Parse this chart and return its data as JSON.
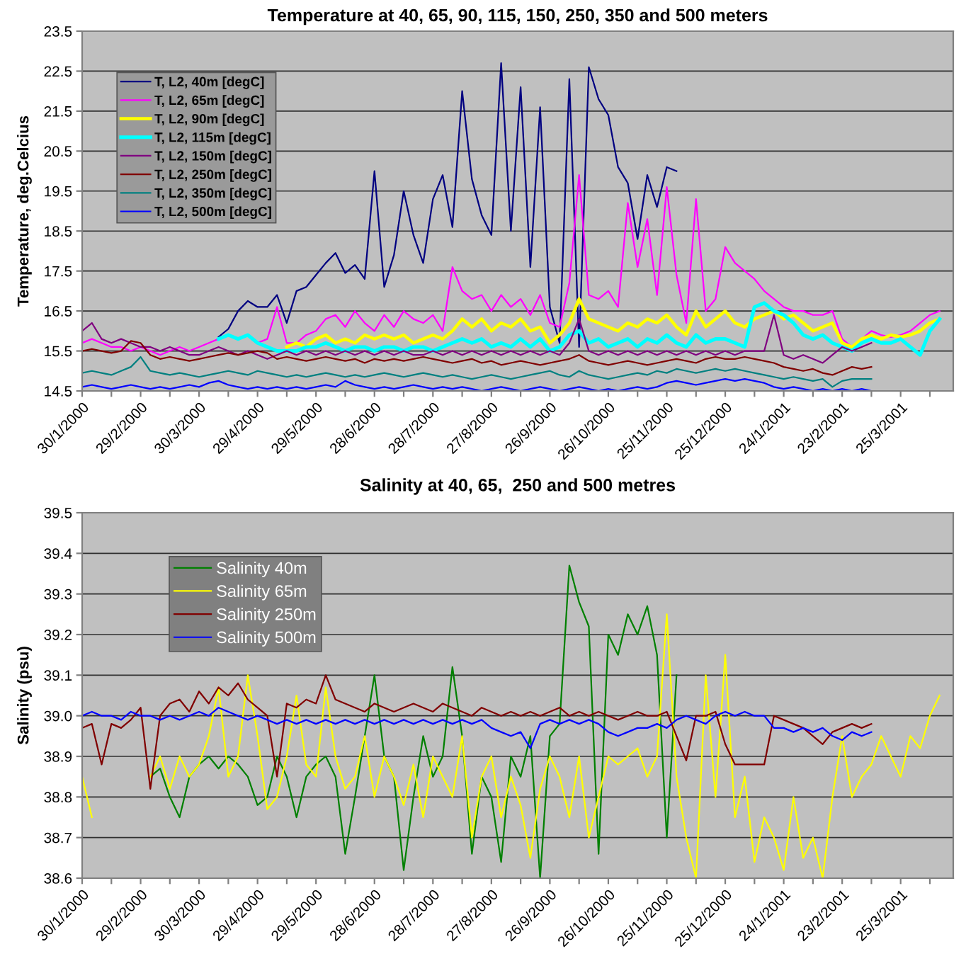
{
  "chart_data": [
    {
      "type": "line",
      "title": "Temperature at 40, 65, 90, 115, 150, 250, 350 and 500 meters",
      "ylabel": "Temperature, deg.Celcius",
      "x": [
        "2000-01-30",
        "2000-02-04",
        "2000-02-09",
        "2000-02-14",
        "2000-02-19",
        "2000-02-24",
        "2000-02-29",
        "2000-03-05",
        "2000-03-10",
        "2000-03-15",
        "2000-03-20",
        "2000-03-25",
        "2000-03-30",
        "2000-04-04",
        "2000-04-09",
        "2000-04-14",
        "2000-04-19",
        "2000-04-24",
        "2000-04-29",
        "2000-05-04",
        "2000-05-09",
        "2000-05-14",
        "2000-05-19",
        "2000-05-24",
        "2000-05-29",
        "2000-06-03",
        "2000-06-08",
        "2000-06-13",
        "2000-06-18",
        "2000-06-23",
        "2000-06-28",
        "2000-07-03",
        "2000-07-08",
        "2000-07-13",
        "2000-07-18",
        "2000-07-23",
        "2000-07-28",
        "2000-08-02",
        "2000-08-07",
        "2000-08-12",
        "2000-08-17",
        "2000-08-22",
        "2000-08-27",
        "2000-09-01",
        "2000-09-06",
        "2000-09-11",
        "2000-09-16",
        "2000-09-21",
        "2000-09-26",
        "2000-10-01",
        "2000-10-06",
        "2000-10-11",
        "2000-10-16",
        "2000-10-21",
        "2000-10-26",
        "2000-10-31",
        "2000-11-05",
        "2000-11-10",
        "2000-11-15",
        "2000-11-20",
        "2000-11-25",
        "2000-11-30",
        "2000-12-05",
        "2000-12-10",
        "2000-12-15",
        "2000-12-20",
        "2000-12-25",
        "2000-12-30",
        "2001-01-04",
        "2001-01-09",
        "2001-01-14",
        "2001-01-19",
        "2001-01-24",
        "2001-01-29",
        "2001-02-03",
        "2001-02-08",
        "2001-02-13",
        "2001-02-18",
        "2001-02-23",
        "2001-02-28",
        "2001-03-05",
        "2001-03-10",
        "2001-03-15",
        "2001-03-20",
        "2001-03-25",
        "2001-03-30",
        "2001-04-04",
        "2001-04-09",
        "2001-04-14"
      ],
      "series": [
        {
          "name": "T, L2, 40m [degC]",
          "color": "#000080",
          "values": [
            null,
            null,
            null,
            null,
            null,
            null,
            null,
            null,
            null,
            null,
            null,
            null,
            null,
            null,
            15.85,
            16.05,
            16.5,
            16.75,
            16.6,
            16.6,
            16.9,
            16.2,
            17.0,
            17.1,
            17.4,
            17.7,
            17.95,
            17.45,
            17.65,
            17.3,
            20.0,
            17.1,
            17.9,
            19.5,
            18.4,
            17.7,
            19.3,
            19.9,
            18.6,
            22.0,
            19.8,
            18.9,
            18.4,
            22.7,
            18.5,
            22.1,
            17.6,
            21.6,
            16.6,
            15.7,
            22.3,
            15.6,
            22.6,
            21.8,
            21.4,
            20.1,
            19.7,
            18.3,
            19.9,
            19.1,
            20.1,
            20.0,
            null,
            null,
            null,
            null,
            null,
            null,
            null,
            null,
            null,
            null,
            null,
            null,
            null,
            null,
            null,
            null,
            null,
            null,
            null,
            null,
            null,
            null,
            null,
            null,
            null,
            null,
            null
          ]
        },
        {
          "name": "T, L2, 65m [degC]",
          "color": "#ff00ff",
          "values": [
            15.7,
            15.8,
            15.7,
            15.6,
            15.6,
            15.5,
            15.6,
            15.5,
            15.4,
            15.5,
            15.6,
            15.5,
            15.6,
            15.7,
            15.8,
            15.9,
            15.8,
            15.9,
            15.7,
            15.8,
            16.6,
            15.7,
            15.7,
            15.9,
            16.0,
            16.3,
            16.4,
            16.1,
            16.5,
            16.2,
            16.0,
            16.4,
            16.1,
            16.5,
            16.3,
            16.2,
            16.4,
            16.0,
            17.6,
            17.0,
            16.8,
            16.9,
            16.5,
            16.9,
            16.6,
            16.8,
            16.4,
            16.9,
            16.2,
            16.1,
            17.2,
            19.9,
            16.9,
            16.8,
            17.0,
            16.6,
            19.2,
            17.6,
            18.8,
            16.9,
            19.6,
            17.4,
            16.2,
            19.3,
            16.5,
            16.8,
            18.1,
            17.7,
            17.5,
            17.3,
            17.0,
            16.8,
            16.6,
            16.5,
            16.5,
            16.4,
            16.4,
            16.5,
            15.8,
            15.6,
            15.8,
            16.0,
            15.9,
            15.85,
            15.9,
            16.0,
            16.2,
            16.4,
            16.5
          ]
        },
        {
          "name": "T, L2, 90m [degC]",
          "color": "#ffff00",
          "values": [
            null,
            null,
            null,
            null,
            null,
            null,
            null,
            null,
            null,
            null,
            null,
            null,
            null,
            null,
            null,
            null,
            null,
            null,
            null,
            null,
            null,
            15.6,
            15.7,
            15.6,
            15.8,
            15.9,
            15.7,
            15.8,
            15.7,
            15.9,
            15.8,
            15.9,
            15.8,
            15.9,
            15.7,
            15.8,
            15.9,
            15.8,
            16.0,
            16.3,
            16.1,
            16.3,
            16.0,
            16.2,
            16.1,
            16.3,
            16.0,
            16.1,
            15.7,
            15.9,
            16.2,
            16.8,
            16.3,
            16.2,
            16.1,
            16.0,
            16.2,
            16.1,
            16.3,
            16.2,
            16.4,
            16.1,
            15.9,
            16.5,
            16.1,
            16.3,
            16.5,
            16.2,
            16.1,
            16.3,
            16.4,
            16.5,
            16.3,
            16.4,
            16.2,
            16.0,
            16.1,
            16.2,
            15.7,
            15.6,
            15.8,
            15.9,
            15.8,
            15.9,
            15.85,
            15.9,
            16.0,
            16.2,
            16.3
          ]
        },
        {
          "name": "T, L2, 115m [degC]",
          "color": "#00ffff",
          "values": [
            null,
            null,
            null,
            null,
            null,
            null,
            null,
            null,
            null,
            null,
            null,
            null,
            null,
            null,
            15.8,
            15.9,
            15.8,
            15.9,
            15.7,
            15.6,
            15.5,
            15.5,
            15.5,
            15.6,
            15.6,
            15.7,
            15.6,
            15.5,
            15.6,
            15.6,
            15.5,
            15.6,
            15.6,
            15.5,
            15.6,
            15.6,
            15.5,
            15.6,
            15.7,
            15.8,
            15.7,
            15.8,
            15.6,
            15.7,
            15.6,
            15.8,
            15.6,
            15.8,
            15.5,
            15.6,
            15.9,
            16.0,
            15.7,
            15.8,
            15.6,
            15.7,
            15.8,
            15.6,
            15.8,
            15.7,
            15.9,
            15.7,
            15.6,
            15.9,
            15.7,
            15.8,
            15.8,
            15.7,
            15.6,
            16.6,
            16.7,
            16.5,
            16.4,
            16.2,
            15.9,
            15.8,
            15.9,
            15.7,
            15.6,
            15.5,
            15.7,
            15.8,
            15.7,
            15.7,
            15.8,
            15.6,
            15.4,
            16.0,
            16.3
          ]
        },
        {
          "name": "T, L2, 150m [degC]",
          "color": "#800080",
          "values": [
            16.0,
            16.2,
            15.8,
            15.7,
            15.8,
            15.7,
            15.6,
            15.6,
            15.5,
            15.6,
            15.5,
            15.4,
            15.4,
            15.5,
            15.6,
            15.5,
            15.4,
            15.5,
            15.4,
            15.3,
            15.4,
            15.5,
            15.4,
            15.5,
            15.4,
            15.5,
            15.4,
            15.5,
            15.4,
            15.5,
            15.4,
            15.5,
            15.4,
            15.5,
            15.4,
            15.4,
            15.5,
            15.4,
            15.5,
            15.4,
            15.5,
            15.4,
            15.5,
            15.4,
            15.5,
            15.4,
            15.5,
            15.4,
            15.5,
            15.4,
            15.7,
            16.3,
            15.5,
            15.4,
            15.5,
            15.4,
            15.5,
            15.4,
            15.5,
            15.4,
            15.5,
            15.4,
            15.5,
            15.4,
            15.5,
            15.4,
            15.5,
            15.4,
            15.5,
            15.5,
            15.5,
            16.4,
            15.4,
            15.3,
            15.4,
            15.3,
            15.2,
            15.4,
            15.6,
            15.5,
            15.6,
            15.7,
            null,
            null,
            null,
            null,
            null,
            null,
            null
          ]
        },
        {
          "name": "T, L2, 250m [degC]",
          "color": "#800000",
          "values": [
            15.5,
            15.55,
            15.5,
            15.45,
            15.5,
            15.75,
            15.7,
            15.4,
            15.3,
            15.35,
            15.3,
            15.25,
            15.3,
            15.35,
            15.4,
            15.45,
            15.4,
            15.45,
            15.5,
            15.45,
            15.3,
            15.35,
            15.3,
            15.25,
            15.3,
            15.35,
            15.3,
            15.25,
            15.3,
            15.2,
            15.3,
            15.25,
            15.3,
            15.25,
            15.3,
            15.35,
            15.3,
            15.25,
            15.2,
            15.25,
            15.3,
            15.2,
            15.25,
            15.15,
            15.2,
            15.25,
            15.2,
            15.15,
            15.2,
            15.25,
            15.3,
            15.4,
            15.25,
            15.2,
            15.15,
            15.2,
            15.25,
            15.2,
            15.15,
            15.2,
            15.25,
            15.3,
            15.25,
            15.2,
            15.3,
            15.35,
            15.3,
            15.3,
            15.35,
            15.3,
            15.25,
            15.2,
            15.1,
            15.05,
            15.0,
            15.05,
            14.95,
            14.9,
            15.0,
            15.1,
            15.05,
            15.1,
            null,
            null,
            null,
            null,
            null,
            null,
            null
          ]
        },
        {
          "name": "T, L2, 350m [degC]",
          "color": "#008080",
          "values": [
            14.95,
            15.0,
            14.95,
            14.9,
            15.0,
            15.1,
            15.35,
            15.0,
            14.95,
            14.9,
            14.95,
            14.9,
            14.85,
            14.9,
            14.95,
            15.0,
            14.95,
            14.9,
            15.0,
            14.95,
            14.9,
            14.85,
            14.9,
            14.85,
            14.9,
            14.95,
            14.9,
            14.85,
            14.9,
            14.85,
            14.9,
            14.95,
            14.9,
            14.85,
            14.9,
            14.95,
            14.9,
            14.85,
            14.9,
            14.85,
            14.8,
            14.85,
            14.9,
            14.85,
            14.8,
            14.85,
            14.9,
            14.95,
            15.0,
            14.9,
            14.85,
            15.0,
            14.9,
            14.85,
            14.8,
            14.85,
            14.9,
            14.95,
            14.9,
            15.0,
            14.95,
            15.05,
            15.0,
            14.95,
            15.0,
            15.05,
            15.0,
            15.05,
            15.0,
            14.95,
            14.9,
            14.85,
            14.8,
            14.85,
            14.8,
            14.75,
            14.8,
            14.6,
            14.75,
            14.8,
            14.8,
            14.8,
            null,
            null,
            null,
            null,
            null,
            null,
            null
          ]
        },
        {
          "name": "T, L2, 500m [degC]",
          "color": "#0000ff",
          "values": [
            14.6,
            14.65,
            14.6,
            14.55,
            14.6,
            14.65,
            14.6,
            14.55,
            14.6,
            14.55,
            14.6,
            14.65,
            14.6,
            14.7,
            14.75,
            14.65,
            14.6,
            14.55,
            14.6,
            14.55,
            14.6,
            14.55,
            14.6,
            14.55,
            14.6,
            14.65,
            14.6,
            14.75,
            14.65,
            14.6,
            14.55,
            14.6,
            14.55,
            14.6,
            14.65,
            14.6,
            14.55,
            14.6,
            14.55,
            14.6,
            14.55,
            14.5,
            14.55,
            14.6,
            14.55,
            14.5,
            14.55,
            14.6,
            14.55,
            14.5,
            14.55,
            14.6,
            14.55,
            14.5,
            14.55,
            14.5,
            14.55,
            14.6,
            14.55,
            14.6,
            14.7,
            14.75,
            14.7,
            14.65,
            14.7,
            14.75,
            14.8,
            14.75,
            14.8,
            14.75,
            14.7,
            14.6,
            14.55,
            14.6,
            14.55,
            14.5,
            14.55,
            14.5,
            14.55,
            14.5,
            14.55,
            14.5,
            null,
            null,
            null,
            null,
            null,
            null,
            null
          ]
        }
      ],
      "xlim": [
        "2000-01-30",
        "2001-04-21"
      ],
      "xticks": [
        {
          "value": "2000-01-30",
          "label": "30/1/2000"
        },
        {
          "value": "2000-02-14",
          "label": null
        },
        {
          "value": "2000-02-29",
          "label": "29/2/2000"
        },
        {
          "value": "2000-03-15",
          "label": null
        },
        {
          "value": "2000-03-30",
          "label": "30/3/2000"
        },
        {
          "value": "2000-04-14",
          "label": null
        },
        {
          "value": "2000-04-29",
          "label": "29/4/2000"
        },
        {
          "value": "2000-05-14",
          "label": null
        },
        {
          "value": "2000-05-29",
          "label": "29/5/2000"
        },
        {
          "value": "2000-06-13",
          "label": null
        },
        {
          "value": "2000-06-28",
          "label": "28/6/2000"
        },
        {
          "value": "2000-07-13",
          "label": null
        },
        {
          "value": "2000-07-28",
          "label": "28/7/2000"
        },
        {
          "value": "2000-08-12",
          "label": null
        },
        {
          "value": "2000-08-27",
          "label": "27/8/2000"
        },
        {
          "value": "2000-09-11",
          "label": null
        },
        {
          "value": "2000-09-26",
          "label": "26/9/2000"
        },
        {
          "value": "2000-10-11",
          "label": null
        },
        {
          "value": "2000-10-26",
          "label": "26/10/2000"
        },
        {
          "value": "2000-11-10",
          "label": null
        },
        {
          "value": "2000-11-25",
          "label": "25/11/2000"
        },
        {
          "value": "2000-12-10",
          "label": null
        },
        {
          "value": "2000-12-25",
          "label": "25/12/2000"
        },
        {
          "value": "2001-01-09",
          "label": null
        },
        {
          "value": "2001-01-24",
          "label": "24/1/2001"
        },
        {
          "value": "2001-02-08",
          "label": null
        },
        {
          "value": "2001-02-23",
          "label": "23/2/2001"
        },
        {
          "value": "2001-03-10",
          "label": null
        },
        {
          "value": "2001-03-25",
          "label": "25/3/2001"
        },
        {
          "value": "2001-04-09",
          "label": null
        }
      ],
      "ylim": [
        14.5,
        23.5
      ],
      "yticks": [
        14.5,
        15.5,
        16.5,
        17.5,
        18.5,
        19.5,
        20.5,
        21.5,
        22.5,
        23.5
      ],
      "grid": "y",
      "legend": "top left"
    },
    {
      "type": "line",
      "title": "Salinity at 40, 65,  250 and 500 metres",
      "ylabel": "Salinity (psu)",
      "x": [
        "2000-01-30",
        "2000-02-04",
        "2000-02-09",
        "2000-02-14",
        "2000-02-19",
        "2000-02-24",
        "2000-02-29",
        "2000-03-05",
        "2000-03-10",
        "2000-03-15",
        "2000-03-20",
        "2000-03-25",
        "2000-03-30",
        "2000-04-04",
        "2000-04-09",
        "2000-04-14",
        "2000-04-19",
        "2000-04-24",
        "2000-04-29",
        "2000-05-04",
        "2000-05-09",
        "2000-05-14",
        "2000-05-19",
        "2000-05-24",
        "2000-05-29",
        "2000-06-03",
        "2000-06-08",
        "2000-06-13",
        "2000-06-18",
        "2000-06-23",
        "2000-06-28",
        "2000-07-03",
        "2000-07-08",
        "2000-07-13",
        "2000-07-18",
        "2000-07-23",
        "2000-07-28",
        "2000-08-02",
        "2000-08-07",
        "2000-08-12",
        "2000-08-17",
        "2000-08-22",
        "2000-08-27",
        "2000-09-01",
        "2000-09-06",
        "2000-09-11",
        "2000-09-16",
        "2000-09-21",
        "2000-09-26",
        "2000-10-01",
        "2000-10-06",
        "2000-10-11",
        "2000-10-16",
        "2000-10-21",
        "2000-10-26",
        "2000-10-31",
        "2000-11-05",
        "2000-11-10",
        "2000-11-15",
        "2000-11-20",
        "2000-11-25",
        "2000-11-30",
        "2000-12-05",
        "2000-12-10",
        "2000-12-15",
        "2000-12-20",
        "2000-12-25",
        "2000-12-30",
        "2001-01-04",
        "2001-01-09",
        "2001-01-14",
        "2001-01-19",
        "2001-01-24",
        "2001-01-29",
        "2001-02-03",
        "2001-02-08",
        "2001-02-13",
        "2001-02-18",
        "2001-02-23",
        "2001-02-28",
        "2001-03-05",
        "2001-03-10",
        "2001-03-15",
        "2001-03-20",
        "2001-03-25",
        "2001-03-30",
        "2001-04-04",
        "2001-04-09",
        "2001-04-14"
      ],
      "series": [
        {
          "name": "Salinity 40m",
          "color": "#008000",
          "values": [
            null,
            null,
            null,
            null,
            null,
            null,
            null,
            38.85,
            38.87,
            38.8,
            38.75,
            38.85,
            38.88,
            38.9,
            38.87,
            38.9,
            38.88,
            38.85,
            38.78,
            38.8,
            38.9,
            38.85,
            38.75,
            38.85,
            38.88,
            38.9,
            38.85,
            38.66,
            38.8,
            38.95,
            39.1,
            38.9,
            38.85,
            38.62,
            38.8,
            38.95,
            38.85,
            38.9,
            39.12,
            38.95,
            38.66,
            38.85,
            38.8,
            38.64,
            38.9,
            38.85,
            38.95,
            38.6,
            38.95,
            38.98,
            39.37,
            39.28,
            39.22,
            38.66,
            39.2,
            39.15,
            39.25,
            39.2,
            39.27,
            39.15,
            38.7,
            39.1,
            null,
            null,
            null,
            null,
            null,
            null,
            null,
            null,
            null,
            null,
            null,
            null,
            null,
            null,
            null,
            null,
            null,
            null,
            null,
            null,
            null,
            null,
            null,
            null,
            null,
            null,
            null
          ]
        },
        {
          "name": "Salinity 65m",
          "color": "#ffff00",
          "values": [
            38.85,
            38.75,
            null,
            null,
            null,
            null,
            null,
            38.85,
            38.9,
            38.82,
            38.9,
            38.85,
            38.88,
            38.95,
            39.07,
            38.85,
            38.9,
            39.1,
            38.95,
            38.77,
            38.8,
            38.9,
            39.05,
            38.88,
            38.85,
            39.07,
            38.9,
            38.82,
            38.85,
            38.95,
            38.8,
            38.9,
            38.85,
            38.78,
            38.88,
            38.75,
            38.9,
            38.85,
            38.8,
            38.95,
            38.7,
            38.85,
            38.9,
            38.75,
            38.85,
            38.78,
            38.65,
            38.82,
            38.9,
            38.85,
            38.75,
            38.9,
            38.7,
            38.8,
            38.9,
            38.88,
            38.9,
            38.92,
            38.85,
            38.9,
            39.25,
            38.85,
            38.7,
            38.6,
            39.1,
            38.8,
            39.15,
            38.75,
            38.85,
            38.64,
            38.75,
            38.7,
            38.62,
            38.8,
            38.65,
            38.7,
            38.6,
            38.8,
            38.95,
            38.8,
            38.85,
            38.88,
            38.95,
            38.9,
            38.85,
            38.95,
            38.92,
            39.0,
            39.05
          ]
        },
        {
          "name": "Salinity 250m",
          "color": "#800000",
          "values": [
            38.97,
            38.98,
            38.88,
            38.98,
            38.97,
            38.99,
            39.02,
            38.82,
            39.0,
            39.03,
            39.04,
            39.01,
            39.06,
            39.03,
            39.07,
            39.05,
            39.08,
            39.04,
            39.02,
            39.0,
            38.85,
            39.03,
            39.02,
            39.04,
            39.03,
            39.1,
            39.04,
            39.03,
            39.02,
            39.01,
            39.03,
            39.02,
            39.01,
            39.02,
            39.03,
            39.02,
            39.01,
            39.03,
            39.02,
            39.01,
            39.0,
            39.02,
            39.01,
            39.0,
            39.01,
            39.0,
            39.01,
            39.0,
            39.01,
            39.02,
            39.0,
            39.01,
            39.0,
            39.01,
            39.0,
            38.99,
            39.0,
            39.01,
            39.0,
            39.0,
            39.01,
            38.95,
            38.89,
            39.0,
            39.0,
            39.01,
            38.93,
            38.88,
            38.88,
            38.88,
            38.88,
            39.0,
            38.99,
            38.98,
            38.97,
            38.95,
            38.93,
            38.96,
            38.97,
            38.98,
            38.97,
            38.98,
            null,
            null,
            null,
            null,
            null,
            null,
            null
          ]
        },
        {
          "name": "Salinity 500m",
          "color": "#0000ff",
          "values": [
            39.0,
            39.01,
            39.0,
            39.0,
            38.99,
            39.01,
            39.0,
            39.0,
            38.99,
            39.0,
            38.99,
            39.0,
            39.01,
            39.0,
            39.02,
            39.01,
            39.0,
            38.99,
            39.0,
            38.99,
            38.98,
            38.99,
            38.98,
            38.99,
            38.98,
            38.99,
            38.98,
            38.99,
            38.98,
            38.99,
            38.98,
            38.99,
            38.98,
            38.99,
            38.98,
            38.99,
            38.98,
            38.99,
            38.98,
            38.99,
            38.98,
            38.99,
            38.97,
            38.96,
            38.95,
            38.96,
            38.92,
            38.98,
            38.99,
            38.98,
            38.99,
            38.98,
            38.99,
            38.98,
            38.96,
            38.95,
            38.96,
            38.97,
            38.97,
            38.98,
            38.97,
            38.99,
            39.0,
            38.99,
            38.98,
            39.0,
            39.01,
            39.0,
            39.01,
            39.0,
            39.0,
            38.97,
            38.97,
            38.96,
            38.97,
            38.96,
            38.97,
            38.95,
            38.94,
            38.96,
            38.95,
            38.96,
            null,
            null,
            null,
            null,
            null,
            null,
            null
          ]
        }
      ],
      "xlim": [
        "2000-01-30",
        "2001-04-21"
      ],
      "xticks": [
        {
          "value": "2000-01-30",
          "label": "30/1/2000"
        },
        {
          "value": "2000-02-14",
          "label": null
        },
        {
          "value": "2000-02-29",
          "label": "29/2/2000"
        },
        {
          "value": "2000-03-15",
          "label": null
        },
        {
          "value": "2000-03-30",
          "label": "30/3/2000"
        },
        {
          "value": "2000-04-14",
          "label": null
        },
        {
          "value": "2000-04-29",
          "label": "29/4/2000"
        },
        {
          "value": "2000-05-14",
          "label": null
        },
        {
          "value": "2000-05-29",
          "label": "29/5/2000"
        },
        {
          "value": "2000-06-13",
          "label": null
        },
        {
          "value": "2000-06-28",
          "label": "28/6/2000"
        },
        {
          "value": "2000-07-13",
          "label": null
        },
        {
          "value": "2000-07-28",
          "label": "28/7/2000"
        },
        {
          "value": "2000-08-12",
          "label": null
        },
        {
          "value": "2000-08-27",
          "label": "27/8/2000"
        },
        {
          "value": "2000-09-11",
          "label": null
        },
        {
          "value": "2000-09-26",
          "label": "26/9/2000"
        },
        {
          "value": "2000-10-11",
          "label": null
        },
        {
          "value": "2000-10-26",
          "label": "26/10/2000"
        },
        {
          "value": "2000-11-10",
          "label": null
        },
        {
          "value": "2000-11-25",
          "label": "25/11/2000"
        },
        {
          "value": "2000-12-10",
          "label": null
        },
        {
          "value": "2000-12-25",
          "label": "25/12/2000"
        },
        {
          "value": "2001-01-09",
          "label": null
        },
        {
          "value": "2001-01-24",
          "label": "24/1/2001"
        },
        {
          "value": "2001-02-08",
          "label": null
        },
        {
          "value": "2001-02-23",
          "label": "23/2/2001"
        },
        {
          "value": "2001-03-10",
          "label": null
        },
        {
          "value": "2001-03-25",
          "label": "25/3/2001"
        },
        {
          "value": "2001-04-09",
          "label": null
        }
      ],
      "ylim": [
        38.6,
        39.5
      ],
      "yticks": [
        38.6,
        38.7,
        38.8,
        38.9,
        {
          "value": 39.0,
          "label": "39.0"
        },
        39.1,
        39.2,
        39.3,
        39.4,
        39.5
      ],
      "grid": "y",
      "legend": "top left"
    }
  ]
}
